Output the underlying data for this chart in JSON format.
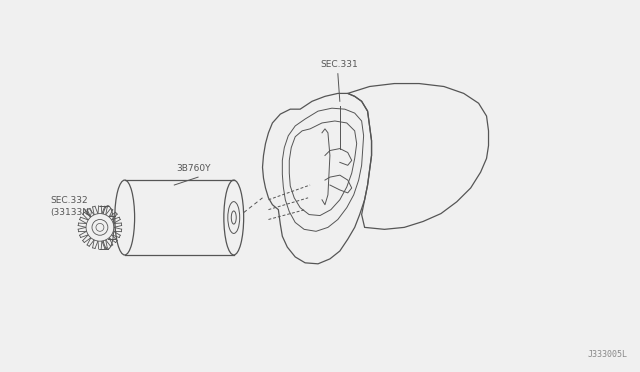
{
  "bg_color": "#f0f0f0",
  "line_color": "#555555",
  "text_color": "#555555",
  "diagram_id": "J333005L",
  "label_sec331": "SEC.331",
  "label_38760y": "3B760Y",
  "label_sec332": "SEC.332\n(33133N)",
  "fig_width": 6.4,
  "fig_height": 3.72,
  "dpi": 100
}
